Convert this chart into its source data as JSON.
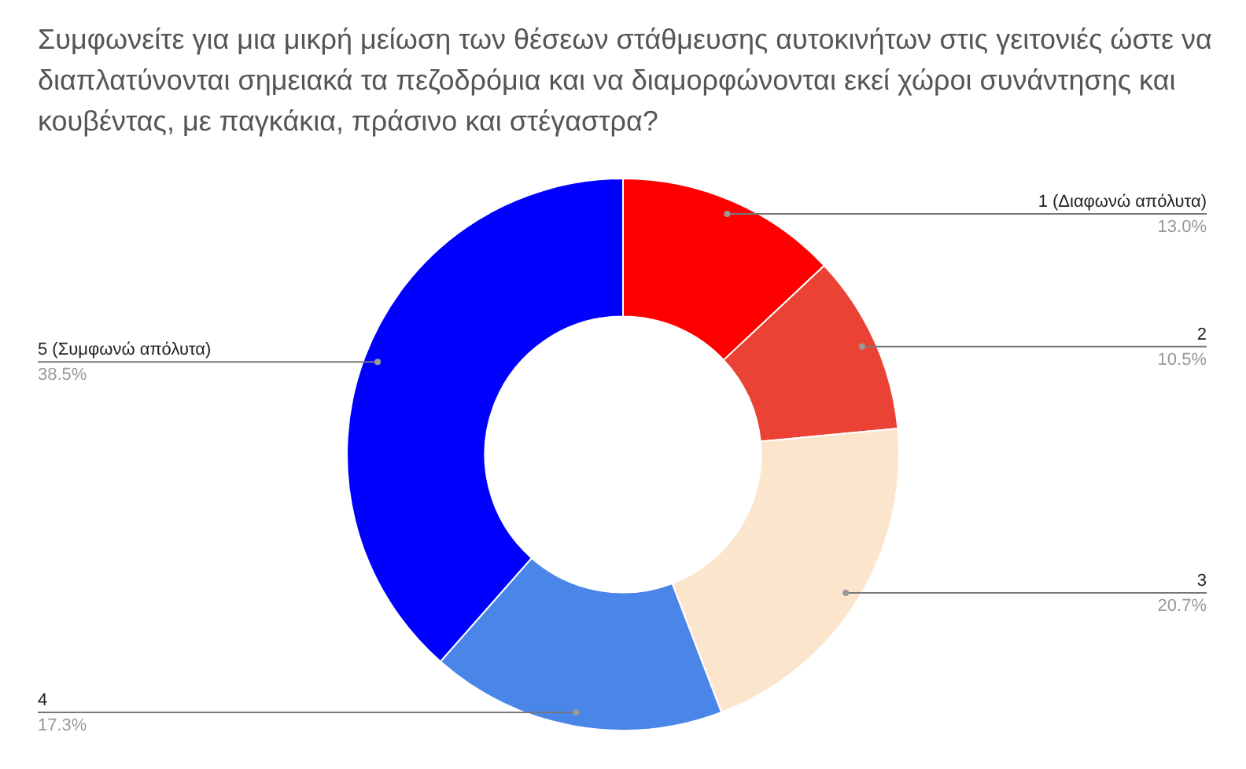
{
  "chart_data": {
    "type": "donut",
    "title": "Συμφωνείτε για μια μικρή μείωση των θέσεων στάθμευσης αυτοκινήτων στις γειτονιές ώστε να διαπλατύνονται σημειακά τα πεζοδρόμια και να διαμορφώνονται εκεί χώροι συνάντησης και κουβέντας, με παγκάκια, πράσινο και στέγαστρα?",
    "categories": [
      "1 (Διαφωνώ απόλυτα)",
      "2",
      "3",
      "4",
      "5 (Συμφωνώ απόλυτα)"
    ],
    "values": [
      13.0,
      10.5,
      20.7,
      17.3,
      38.5
    ],
    "colors": [
      "#ff0000",
      "#ea4335",
      "#fce5cd",
      "#4a86e8",
      "#0000ff"
    ],
    "value_labels": [
      "13.0%",
      "10.5%",
      "20.7%",
      "17.3%",
      "38.5%"
    ],
    "legend": false
  }
}
